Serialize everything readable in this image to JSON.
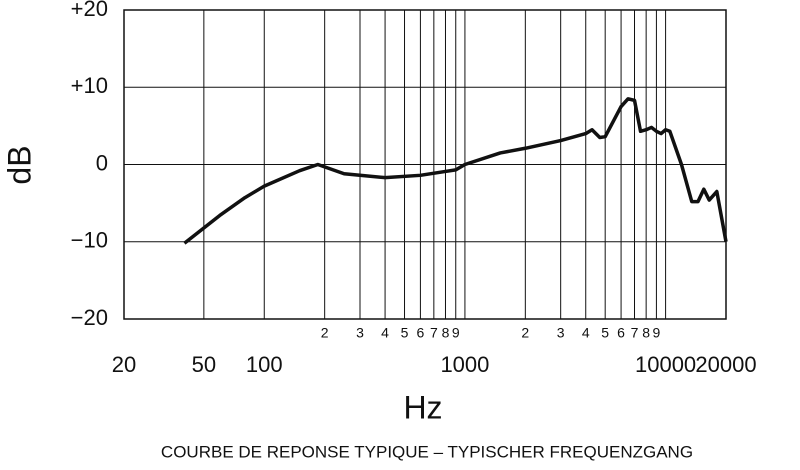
{
  "chart_data": {
    "type": "line",
    "title": "COURBE DE REPONSE TYPIQUE – TYPISCHER FREQUENZGANG",
    "xlabel": "Hz",
    "ylabel": "dB",
    "xscale": "log",
    "grid": true,
    "color": "#111111",
    "xlim": [
      20,
      20000
    ],
    "ylim": [
      -20,
      20
    ],
    "xticks": [
      20,
      50,
      100,
      1000,
      10000,
      20000
    ],
    "xticks_minor": [
      {
        "value": 200,
        "label": "2"
      },
      {
        "value": 300,
        "label": "3"
      },
      {
        "value": 400,
        "label": "4"
      },
      {
        "value": 500,
        "label": "5"
      },
      {
        "value": 600,
        "label": "6"
      },
      {
        "value": 700,
        "label": "7"
      },
      {
        "value": 800,
        "label": "8"
      },
      {
        "value": 900,
        "label": "9"
      },
      {
        "value": 2000,
        "label": "2"
      },
      {
        "value": 3000,
        "label": "3"
      },
      {
        "value": 4000,
        "label": "4"
      },
      {
        "value": 5000,
        "label": "5"
      },
      {
        "value": 6000,
        "label": "6"
      },
      {
        "value": 7000,
        "label": "7"
      },
      {
        "value": 8000,
        "label": "8"
      },
      {
        "value": 9000,
        "label": "9"
      }
    ],
    "yticks": [
      {
        "value": 20,
        "label": "+20"
      },
      {
        "value": 10,
        "label": "+10"
      },
      0,
      {
        "value": -10,
        "label": "−10"
      },
      {
        "value": -20,
        "label": "−20"
      }
    ],
    "x": [
      40,
      60,
      80,
      100,
      150,
      185,
      250,
      400,
      600,
      800,
      900,
      1000,
      1500,
      2000,
      3000,
      4000,
      4300,
      4700,
      5000,
      6000,
      6500,
      7000,
      7500,
      8000,
      8500,
      9000,
      9500,
      10000,
      10500,
      12000,
      13500,
      14500,
      15500,
      16500,
      18000,
      20000
    ],
    "values": [
      -10.2,
      -6.6,
      -4.3,
      -2.8,
      -0.8,
      0,
      -1.2,
      -1.7,
      -1.4,
      -0.9,
      -0.7,
      0,
      1.5,
      2.1,
      3.1,
      4.0,
      4.5,
      3.5,
      3.6,
      7.5,
      8.5,
      8.3,
      4.3,
      4.5,
      4.8,
      4.3,
      4.0,
      4.5,
      4.3,
      0,
      -4.8,
      -4.8,
      -3.2,
      -4.6,
      -3.5,
      -10
    ]
  }
}
